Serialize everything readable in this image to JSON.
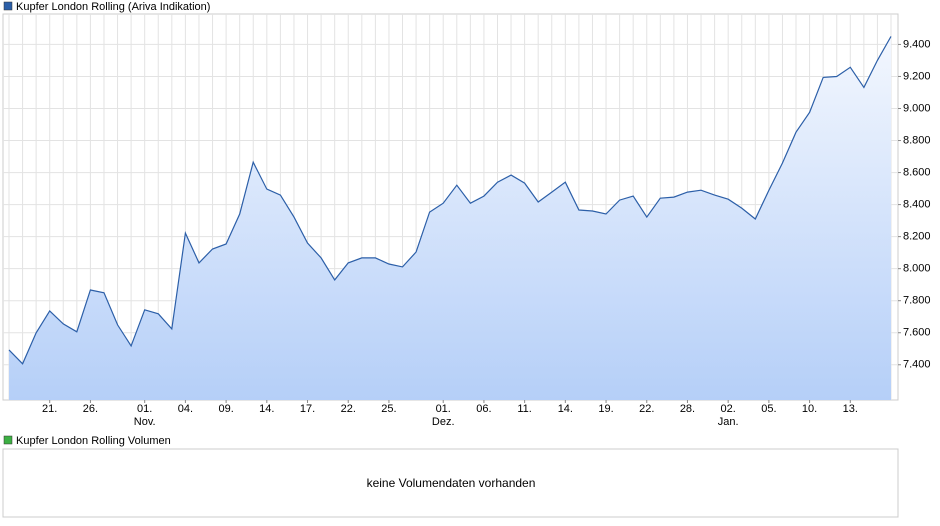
{
  "chart_data": {
    "type": "line",
    "legend": "Kupfer London Rolling (Ariva Indikation)",
    "color": "#2c5fa8",
    "volume_legend": "Kupfer London Rolling Volumen",
    "volume_color": "#3cb043",
    "volume_message": "keine Volumendaten vorhanden",
    "categories": [
      null,
      null,
      null,
      "21.",
      null,
      null,
      "26.",
      null,
      null,
      null,
      "01.",
      null,
      null,
      "04.",
      null,
      null,
      "09.",
      null,
      null,
      "14.",
      null,
      null,
      "17.",
      null,
      null,
      "22.",
      null,
      null,
      "25.",
      null,
      null,
      null,
      "01.",
      null,
      null,
      "06.",
      null,
      null,
      "11.",
      null,
      null,
      "14.",
      null,
      null,
      "19.",
      null,
      null,
      "22.",
      null,
      null,
      "28.",
      null,
      null,
      "02.",
      null,
      null,
      "05.",
      null,
      null,
      "10.",
      null,
      null,
      "13.",
      null,
      null,
      null
    ],
    "category_months": [
      null,
      null,
      null,
      null,
      null,
      null,
      null,
      null,
      null,
      null,
      "Nov.",
      null,
      null,
      null,
      null,
      null,
      null,
      null,
      null,
      null,
      null,
      null,
      null,
      null,
      null,
      null,
      null,
      null,
      null,
      null,
      null,
      null,
      "Dez.",
      null,
      null,
      null,
      null,
      null,
      null,
      null,
      null,
      null,
      null,
      null,
      null,
      null,
      null,
      null,
      null,
      null,
      null,
      null,
      null,
      "Jan.",
      null,
      null,
      null,
      null,
      null,
      null,
      null,
      null,
      null,
      null,
      null,
      null
    ],
    "values": [
      7493,
      7406,
      7599,
      7736,
      7655,
      7606,
      7867,
      7849,
      7649,
      7518,
      7743,
      7718,
      7624,
      8222,
      8036,
      8123,
      8154,
      8341,
      8665,
      8497,
      8459,
      8322,
      8160,
      8067,
      7930,
      8036,
      8067,
      8067,
      8029,
      8011,
      8104,
      8353,
      8409,
      8521,
      8409,
      8453,
      8540,
      8584,
      8534,
      8416,
      8478,
      8540,
      8366,
      8360,
      8341,
      8428,
      8453,
      8322,
      8440,
      8447,
      8478,
      8490,
      8459,
      8434,
      8378,
      8310,
      8490,
      8659,
      8852,
      8976,
      9194,
      9200,
      9257,
      9132,
      9300,
      9450
    ],
    "ylim": [
      7180,
      9590
    ],
    "yticks": [
      {
        "value": 7400,
        "label": "7.400"
      },
      {
        "value": 7600,
        "label": "7.600"
      },
      {
        "value": 7800,
        "label": "7.800"
      },
      {
        "value": 8000,
        "label": "8.000"
      },
      {
        "value": 8200,
        "label": "8.200"
      },
      {
        "value": 8400,
        "label": "8.400"
      },
      {
        "value": 8600,
        "label": "8.600"
      },
      {
        "value": 8800,
        "label": "8.800"
      },
      {
        "value": 9000,
        "label": "9.000"
      },
      {
        "value": 9200,
        "label": "9.200"
      },
      {
        "value": 9400,
        "label": "9.400"
      }
    ],
    "grid": true
  }
}
